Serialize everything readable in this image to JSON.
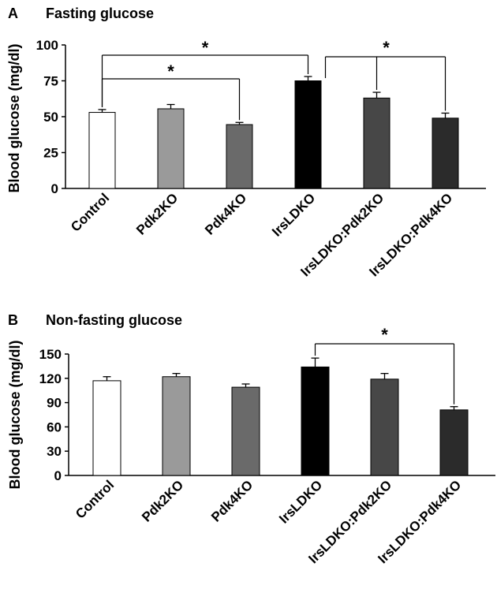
{
  "chart_data": [
    {
      "type": "bar",
      "panel_label": "A",
      "title": "Fasting glucose",
      "ylabel": "Blood glucose (mg/dl)",
      "xlabel": "",
      "ylim": [
        0,
        100
      ],
      "yticks": [
        "0",
        "25",
        "50",
        "75",
        "100"
      ],
      "categories": [
        "Control",
        "Pdk2KO",
        "Pdk4KO",
        "IrsLDKO",
        "IrsLDKO:Pdk2KO",
        "IrsLDKO:Pdk4KO"
      ],
      "values": [
        53,
        55.5,
        44.5,
        75,
        63,
        49
      ],
      "errors": [
        2,
        3,
        1.5,
        3,
        4,
        3.5
      ],
      "colors": [
        "#ffffff",
        "#9a9a9a",
        "#6a6a6a",
        "#000000",
        "#474747",
        "#2b2b2b"
      ],
      "significance": [
        {
          "from": 0,
          "to": 3,
          "label": "*"
        },
        {
          "from": 0,
          "to": 2,
          "label": "*"
        },
        {
          "from": 3,
          "to": [
            4,
            5
          ],
          "label": "*"
        }
      ]
    },
    {
      "type": "bar",
      "panel_label": "B",
      "title": "Non-fasting glucose",
      "ylabel": "Blood glucose (mg/dl)",
      "xlabel": "",
      "ylim": [
        0,
        150
      ],
      "yticks": [
        "0",
        "30",
        "60",
        "90",
        "120",
        "150"
      ],
      "categories": [
        "Control",
        "Pdk2KO",
        "Pdk4KO",
        "IrsLDKO",
        "IrsLDKO:Pdk2KO",
        "IrsLDKO:Pdk4KO"
      ],
      "values": [
        117,
        122,
        109,
        134,
        119,
        81
      ],
      "errors": [
        5,
        4,
        4,
        11,
        7,
        4
      ],
      "colors": [
        "#ffffff",
        "#9a9a9a",
        "#6a6a6a",
        "#000000",
        "#474747",
        "#2b2b2b"
      ],
      "significance": [
        {
          "from": 3,
          "to": 5,
          "label": "*"
        }
      ]
    }
  ]
}
